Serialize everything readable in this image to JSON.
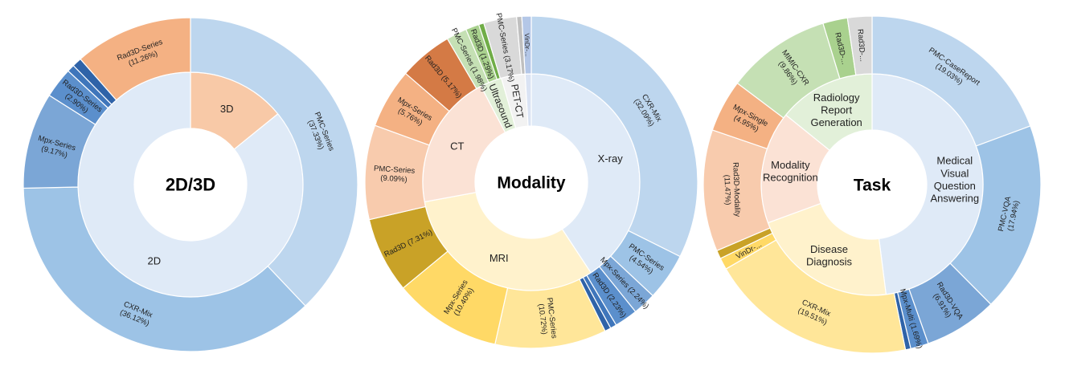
{
  "chart_data": [
    {
      "type": "pie",
      "center_label": "2D/3D",
      "inner": [
        {
          "label": "3D",
          "value": 14.16,
          "color": "#f8c9a7"
        },
        {
          "label": "2D",
          "value": 85.84,
          "color": "#dfeaf7"
        }
      ],
      "outer": [
        {
          "label": "PMC-Series",
          "value_label": "(37.33%)",
          "value": 37.33,
          "color": "#bdd6ee"
        },
        {
          "label": "CXR-Mix",
          "value_label": "(36.12%)",
          "value": 36.12,
          "color": "#9dc3e6"
        },
        {
          "label": "Mpx-Series",
          "value_label": "(9.17%)",
          "value": 9.17,
          "color": "#7ba6d6"
        },
        {
          "label": "Rad3D-Series",
          "value_label": "(2.90%)",
          "value": 2.9,
          "color": "#5b8fcc"
        },
        {
          "label": "",
          "value_label": "",
          "value": 0.7,
          "color": "#3f76bb"
        },
        {
          "label": "",
          "value_label": "",
          "value": 0.9,
          "color": "#2f63a8"
        },
        {
          "label": "Rad3D-Series",
          "value_label": "(11.26%)",
          "value": 11.26,
          "color": "#f4b183"
        }
      ]
    },
    {
      "type": "pie",
      "center_label": "Modality",
      "inner": [
        {
          "label": "X-ray",
          "value": 40.3,
          "color": "#dfeaf7"
        },
        {
          "label": "MRI",
          "value": 31.0,
          "color": "#fff2cc"
        },
        {
          "label": "CT",
          "value": 20.0,
          "color": "#fbe2d5"
        },
        {
          "label": "Ultrasound",
          "value": 3.2,
          "color": "#e2f0d9"
        },
        {
          "label": "PET-CT",
          "value": 3.5,
          "color": "#f2f2f2"
        },
        {
          "label": "",
          "value": 0.9,
          "color": "#dae3f3"
        }
      ],
      "outer": [
        {
          "label": "CXR-Mix",
          "value_label": "(32.09%)",
          "value": 32.09,
          "color": "#bdd6ee"
        },
        {
          "label": "PMC-Series",
          "value_label": "(4.54%)",
          "value": 4.54,
          "color": "#9dc3e6"
        },
        {
          "label": "Mpx-Series (2.24%)",
          "value_label": "",
          "value": 2.24,
          "color": "#7ba6d6"
        },
        {
          "label": "Rad3D (2.23%)",
          "value_label": "",
          "value": 2.23,
          "color": "#5b8fcc"
        },
        {
          "label": "",
          "value_label": "",
          "value": 0.6,
          "color": "#3f76bb"
        },
        {
          "label": "",
          "value_label": "",
          "value": 0.6,
          "color": "#2f63a8"
        },
        {
          "label": "PMC-Series",
          "value_label": "(10.72%)",
          "value": 10.72,
          "color": "#ffe699"
        },
        {
          "label": "Mpx-Series",
          "value_label": "(10.40%)",
          "value": 10.4,
          "color": "#ffd966"
        },
        {
          "label": "Rad3D (7.31%)",
          "value_label": "",
          "value": 7.31,
          "color": "#c9a227"
        },
        {
          "label": "PMC-Series",
          "value_label": "(9.09%)",
          "value": 9.09,
          "color": "#f8cbad"
        },
        {
          "label": "Mpx-Series",
          "value_label": "(5.76%)",
          "value": 5.76,
          "color": "#f4b183"
        },
        {
          "label": "Rad3D (5.17%)",
          "value_label": "",
          "value": 5.17,
          "color": "#d47a45"
        },
        {
          "label": "PMC-Series (1.98%)",
          "value_label": "",
          "value": 1.98,
          "color": "#c5e0b4"
        },
        {
          "label": "Rad3D (1.29%)",
          "value_label": "",
          "value": 1.29,
          "color": "#a9d18e"
        },
        {
          "label": "",
          "value_label": "",
          "value": 0.5,
          "color": "#70ad47"
        },
        {
          "label": "PMC-Series (3.17%)",
          "value_label": "",
          "value": 3.17,
          "color": "#d9d9d9"
        },
        {
          "label": "",
          "value_label": "",
          "value": 0.5,
          "color": "#bfbfbf"
        },
        {
          "label": "VinDr-...",
          "value_label": "",
          "value": 0.9,
          "color": "#b4c7e7"
        }
      ]
    },
    {
      "type": "pie",
      "center_label": "Task",
      "inner": [
        {
          "label": "Medical Visual Question Answering",
          "value": 47.99,
          "color": "#dfeaf7"
        },
        {
          "label": "Disease Diagnosis",
          "value": 21.41,
          "color": "#fff2cc"
        },
        {
          "label": "Modality Recognition",
          "value": 16.42,
          "color": "#fbe2d5"
        },
        {
          "label": "Radiology Report Generation",
          "value": 14.18,
          "color": "#e2f0d9"
        }
      ],
      "outer": [
        {
          "label": "PMC-CaseReport",
          "value_label": "(19.03%)",
          "value": 19.03,
          "color": "#bdd6ee"
        },
        {
          "label": "PMC-VQA",
          "value_label": "(17.94%)",
          "value": 17.94,
          "color": "#9dc3e6"
        },
        {
          "label": "Rad3D-VQA",
          "value_label": "(6.91%)",
          "value": 6.91,
          "color": "#7ba6d6"
        },
        {
          "label": "Mpx-Multi (1.69%)",
          "value_label": "",
          "value": 1.69,
          "color": "#5b8fcc"
        },
        {
          "label": "",
          "value_label": "",
          "value": 0.5,
          "color": "#2f63a8"
        },
        {
          "label": "CXR-Mix",
          "value_label": "(19.51%)",
          "value": 19.51,
          "color": "#ffe699"
        },
        {
          "label": "VinDr-...",
          "value_label": "",
          "value": 1.1,
          "color": "#ffd966"
        },
        {
          "label": "",
          "value_label": "",
          "value": 0.8,
          "color": "#c9a227"
        },
        {
          "label": "Rad3D-Modality",
          "value_label": "(11.47%)",
          "value": 11.47,
          "color": "#f8cbad"
        },
        {
          "label": "Mpx-Single",
          "value_label": "(4.95%)",
          "value": 4.95,
          "color": "#f4b183"
        },
        {
          "label": "MIMIC-CXR",
          "value_label": "(9.86%)",
          "value": 9.86,
          "color": "#c5e0b4"
        },
        {
          "label": "Rad3D-...",
          "value_label": "",
          "value": 2.32,
          "color": "#a9d18e"
        },
        {
          "label": "Rad3D-...",
          "value_label": "",
          "value": 2.3,
          "color": "#d9d9d9"
        }
      ]
    }
  ]
}
